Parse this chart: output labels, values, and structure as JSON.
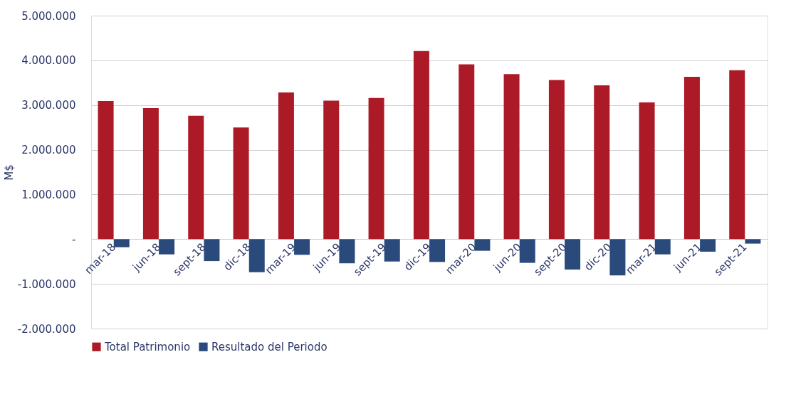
{
  "chart_data": {
    "type": "bar",
    "ylabel": "M$",
    "categories": [
      "mar-18",
      "jun-18",
      "sept-18",
      "dic-18",
      "mar-19",
      "jun-19",
      "sept-19",
      "dic-19",
      "mar-20",
      "jun-20",
      "sept-20",
      "dic-20",
      "mar-21",
      "jun-21",
      "sept-21"
    ],
    "series": [
      {
        "name": "Total Patrimonio",
        "color": "#ab1a26",
        "values": [
          3090000,
          2930000,
          2760000,
          2500000,
          3280000,
          3100000,
          3160000,
          4210000,
          3910000,
          3690000,
          3560000,
          3440000,
          3060000,
          3630000,
          3780000
        ]
      },
      {
        "name": "Resultado del Periodo",
        "color": "#2a4a7c",
        "values": [
          -180000,
          -340000,
          -490000,
          -740000,
          -350000,
          -540000,
          -500000,
          -510000,
          -260000,
          -530000,
          -680000,
          -810000,
          -340000,
          -280000,
          -100000
        ]
      }
    ],
    "ylim": [
      -2000000,
      5000000
    ],
    "yticks": [
      {
        "value": -2000000,
        "label": "-2.000.000"
      },
      {
        "value": -1000000,
        "label": "-1.000.000"
      },
      {
        "value": 0,
        "label": "-"
      },
      {
        "value": 1000000,
        "label": "1.000.000"
      },
      {
        "value": 2000000,
        "label": "2.000.000"
      },
      {
        "value": 3000000,
        "label": "3.000.000"
      },
      {
        "value": 4000000,
        "label": "4.000.000"
      },
      {
        "value": 5000000,
        "label": "5.000.000"
      }
    ],
    "grid": "y",
    "legend": "bottom"
  }
}
